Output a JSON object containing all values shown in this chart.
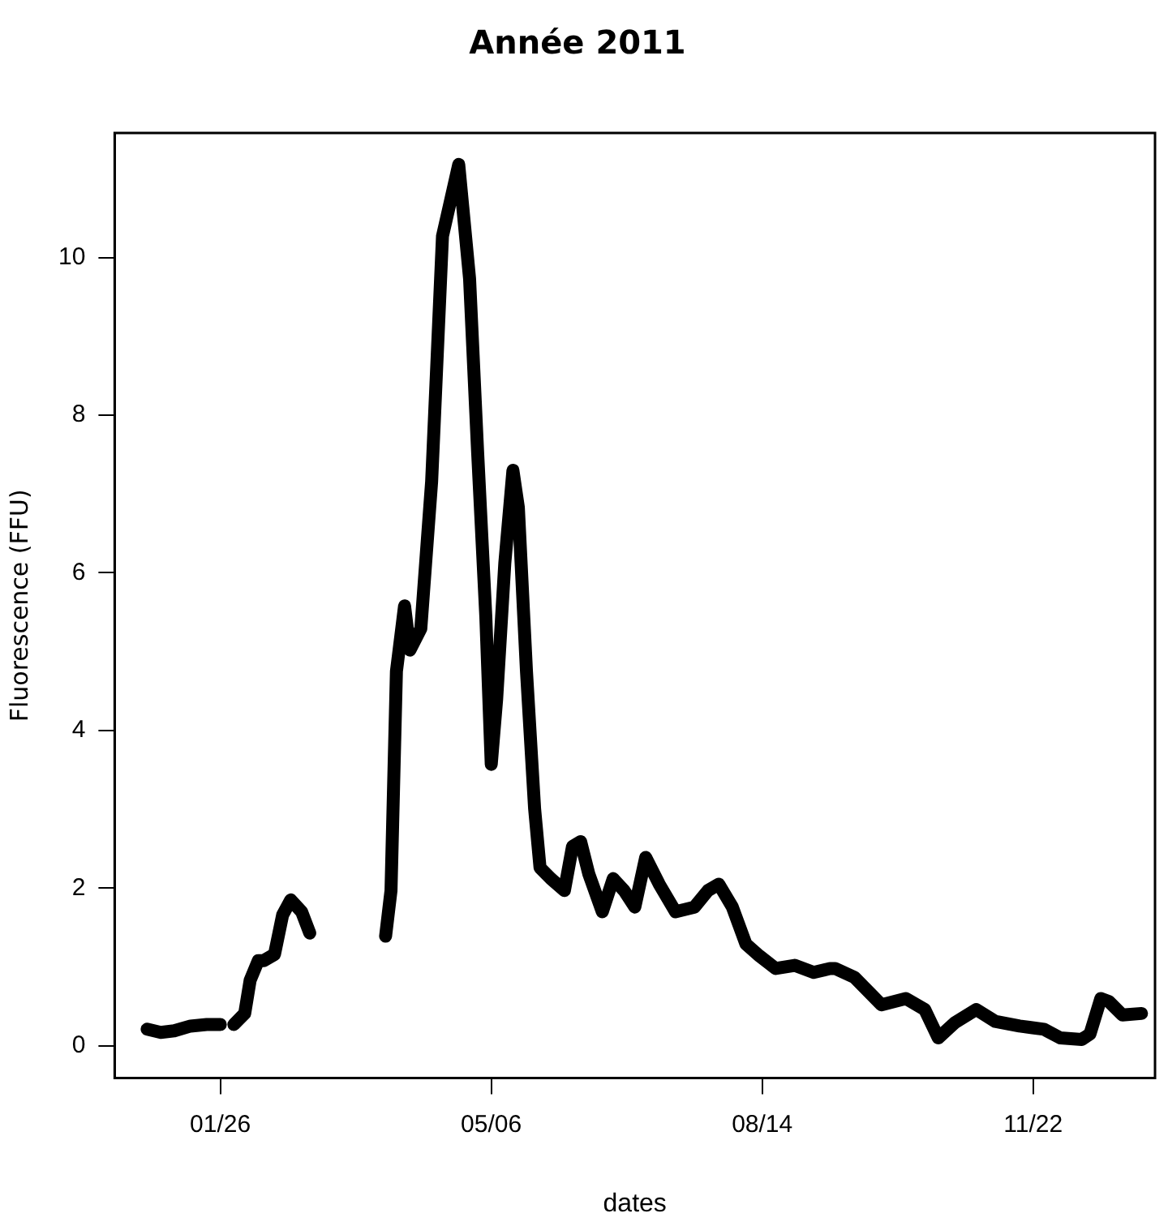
{
  "chart_data": {
    "type": "line",
    "title": "Année 2011",
    "xlabel": "dates",
    "ylabel": "Fluorescence (FFU)",
    "x": [
      "2010-12-30",
      "2011-01-04",
      "2011-01-09",
      "2011-01-15",
      "2011-01-21",
      "2011-01-26",
      "2011-01-28",
      "2011-01-31",
      "2011-02-04",
      "2011-02-06",
      "2011-02-09",
      "2011-02-11",
      "2011-02-15",
      "2011-02-18",
      "2011-02-21",
      "2011-02-25",
      "2011-02-28",
      "2011-03-10",
      "2011-03-28",
      "2011-03-30",
      "2011-04-01",
      "2011-04-04",
      "2011-04-06",
      "2011-04-10",
      "2011-04-14",
      "2011-04-18",
      "2011-04-24",
      "2011-04-28",
      "2011-05-01",
      "2011-05-04",
      "2011-05-06",
      "2011-05-08",
      "2011-05-11",
      "2011-05-14",
      "2011-05-16",
      "2011-05-19",
      "2011-05-22",
      "2011-05-24",
      "2011-05-28",
      "2011-06-02",
      "2011-06-05",
      "2011-06-08",
      "2011-06-11",
      "2011-06-16",
      "2011-06-20",
      "2011-06-24",
      "2011-06-28",
      "2011-07-02",
      "2011-07-07",
      "2011-07-13",
      "2011-07-20",
      "2011-07-25",
      "2011-07-29",
      "2011-08-03",
      "2011-08-08",
      "2011-08-13",
      "2011-08-19",
      "2011-08-26",
      "2011-09-02",
      "2011-09-08",
      "2011-09-10",
      "2011-09-17",
      "2011-09-27",
      "2011-10-06",
      "2011-10-13",
      "2011-10-18",
      "2011-10-24",
      "2011-11-01",
      "2011-11-08",
      "2011-11-17",
      "2011-11-26",
      "2011-12-02",
      "2011-12-10",
      "2011-12-13",
      "2011-12-17",
      "2011-12-20",
      "2011-12-25",
      "2012-01-01"
    ],
    "series": [
      {
        "color": "#000000",
        "values": [
          0.21,
          0.17,
          0.19,
          0.25,
          0.27,
          0.27,
          null,
          0.27,
          0.41,
          0.83,
          1.08,
          1.08,
          1.16,
          1.66,
          1.85,
          1.7,
          1.43,
          null,
          1.39,
          1.97,
          4.75,
          5.58,
          5.02,
          5.29,
          7.16,
          10.27,
          11.18,
          9.73,
          7.51,
          5.44,
          3.57,
          4.4,
          6.12,
          7.3,
          6.83,
          4.75,
          3.01,
          2.26,
          2.12,
          1.97,
          2.53,
          2.59,
          2.18,
          1.7,
          2.12,
          1.97,
          1.76,
          2.39,
          2.05,
          1.7,
          1.76,
          1.97,
          2.05,
          1.76,
          1.29,
          1.14,
          0.98,
          1.02,
          0.93,
          0.98,
          0.98,
          0.87,
          0.52,
          0.6,
          0.46,
          0.1,
          0.29,
          0.46,
          0.31,
          0.25,
          0.21,
          0.1,
          0.08,
          0.15,
          0.6,
          0.56,
          0.39,
          0.41
        ]
      }
    ],
    "xlim": [
      "2010-12-18",
      "2012-01-06"
    ],
    "xticks": [
      {
        "value": "2011-01-26",
        "label": "01/26"
      },
      {
        "value": "2011-05-06",
        "label": "05/06"
      },
      {
        "value": "2011-08-14",
        "label": "08/14"
      },
      {
        "value": "2011-11-22",
        "label": "11/22"
      }
    ],
    "ylim": [
      -0.41,
      11.58
    ],
    "yticks": [
      0,
      2,
      4,
      6,
      8,
      10
    ],
    "grid": false,
    "legend": false,
    "marker": "none",
    "line_style": "solid"
  }
}
